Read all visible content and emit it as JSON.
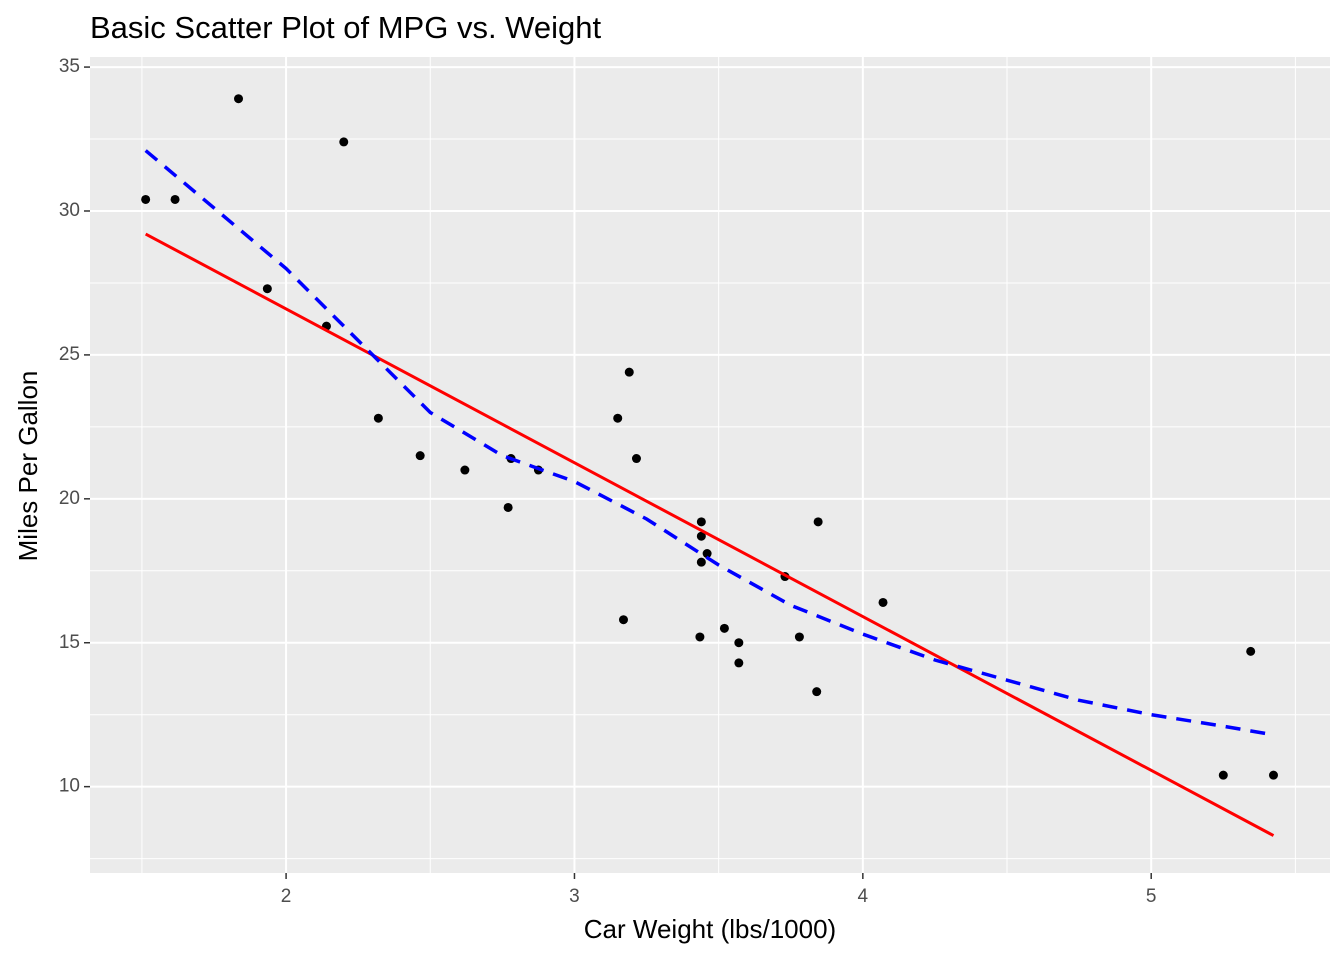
{
  "chart_data": {
    "type": "scatter",
    "title": "Basic Scatter Plot of MPG vs. Weight",
    "x_label": "Car Weight (lbs/1000)",
    "y_label": "Miles Per Gallon",
    "xlim": [
      1.32,
      5.62
    ],
    "ylim": [
      7.0,
      35.35
    ],
    "xticks": [
      2,
      3,
      4,
      5
    ],
    "yticks": [
      10,
      15,
      20,
      25,
      30,
      35
    ],
    "grid": true,
    "minor_grid": true,
    "panel_color": "#ebebeb",
    "series": [
      {
        "type": "scatter",
        "color": "#000000",
        "x": [
          2.62,
          2.875,
          2.32,
          3.215,
          3.44,
          3.46,
          3.57,
          3.19,
          3.15,
          3.44,
          3.44,
          4.07,
          3.73,
          3.78,
          5.25,
          5.424,
          5.345,
          2.2,
          1.615,
          1.835,
          2.465,
          3.52,
          3.435,
          3.84,
          3.845,
          1.935,
          2.14,
          1.513,
          3.17,
          2.77,
          3.57,
          2.78
        ],
        "values": [
          21.0,
          21.0,
          22.8,
          21.4,
          18.7,
          18.1,
          14.3,
          24.4,
          22.8,
          19.2,
          17.8,
          16.4,
          17.3,
          15.2,
          10.4,
          10.4,
          14.7,
          32.4,
          30.4,
          33.9,
          21.5,
          15.5,
          15.2,
          13.3,
          19.2,
          27.3,
          26.0,
          30.4,
          15.8,
          19.7,
          15.0,
          21.4
        ]
      },
      {
        "type": "line",
        "color": "#ff0000",
        "dashed": false,
        "x": [
          1.513,
          5.424
        ],
        "values": [
          29.2,
          8.3
        ]
      },
      {
        "type": "line",
        "color": "#0000ff",
        "dashed": true,
        "x": [
          1.513,
          2.0,
          2.25,
          2.5,
          2.75,
          3.0,
          3.25,
          3.5,
          3.75,
          4.0,
          4.25,
          4.5,
          4.75,
          5.0,
          5.25,
          5.424
        ],
        "values": [
          32.1,
          28.0,
          25.5,
          23.0,
          21.5,
          20.6,
          19.3,
          17.7,
          16.3,
          15.3,
          14.4,
          13.7,
          13.0,
          12.5,
          12.1,
          11.8
        ]
      }
    ]
  }
}
